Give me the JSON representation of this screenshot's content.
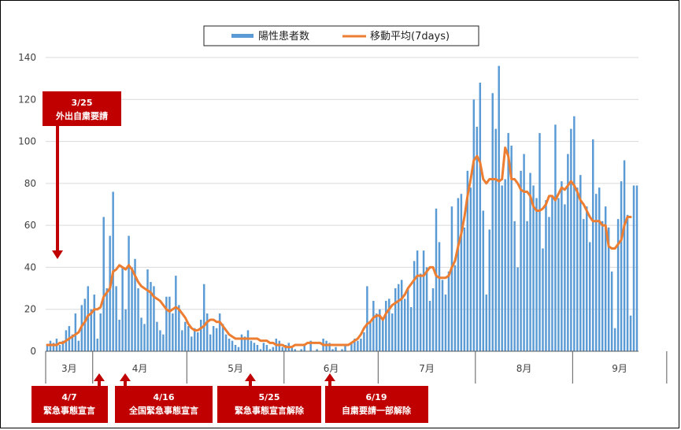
{
  "colors": {
    "bar": "#5b9bd5",
    "line": "#ed7d31",
    "annotation": "#c00000",
    "grid": "#d9d9d9"
  },
  "legend": {
    "bar_label": "陽性患者数",
    "line_label": "移動平均(7days)",
    "position": "top-center"
  },
  "chart_data": {
    "type": "bar",
    "title": "",
    "xlabel": "",
    "ylabel": "",
    "ylim": [
      0,
      140
    ],
    "y_ticks": [
      "0",
      "20",
      "40",
      "60",
      "80",
      "100",
      "120",
      "140"
    ],
    "grid": true,
    "months": [
      {
        "label": "3月",
        "days": 15
      },
      {
        "label": "4月",
        "days": 30
      },
      {
        "label": "5月",
        "days": 31
      },
      {
        "label": "6月",
        "days": 30
      },
      {
        "label": "7月",
        "days": 31
      },
      {
        "label": "8月",
        "days": 31
      },
      {
        "label": "9月",
        "days": 30
      }
    ],
    "x_start": "3/17",
    "series": [
      {
        "name": "陽性患者数",
        "type": "bar",
        "values": [
          3,
          5,
          4,
          6,
          3,
          5,
          10,
          12,
          8,
          18,
          5,
          22,
          25,
          31,
          20,
          27,
          6,
          18,
          64,
          30,
          55,
          76,
          31,
          15,
          40,
          20,
          55,
          40,
          44,
          30,
          16,
          13,
          39,
          33,
          31,
          14,
          10,
          8,
          26,
          26,
          18,
          36,
          22,
          10,
          14,
          12,
          7,
          11,
          9,
          15,
          32,
          18,
          8,
          12,
          11,
          18,
          13,
          8,
          6,
          5,
          3,
          2,
          8,
          7,
          10,
          5,
          4,
          3,
          1,
          4,
          3,
          1,
          2,
          6,
          5,
          2,
          3,
          4,
          2,
          1,
          0,
          1,
          3,
          0,
          5,
          0,
          1,
          0,
          6,
          5,
          4,
          1,
          2,
          0,
          1,
          3,
          0,
          4,
          6,
          5,
          6,
          9,
          31,
          14,
          24,
          18,
          20,
          15,
          24,
          25,
          18,
          30,
          32,
          34,
          25,
          30,
          21,
          43,
          48,
          37,
          48,
          40,
          24,
          30,
          68,
          52,
          34,
          27,
          38,
          69,
          41,
          73,
          75,
          59,
          86,
          78,
          120,
          107,
          128,
          67,
          27,
          58,
          123,
          106,
          136,
          79,
          82,
          104,
          98,
          62,
          40,
          86,
          94,
          62,
          85,
          79,
          73,
          104,
          49,
          72,
          64,
          74,
          108,
          73,
          81,
          70,
          94,
          106,
          112,
          78,
          84,
          63,
          69,
          52,
          101,
          75,
          78,
          62,
          69,
          59,
          38,
          11,
          63,
          81,
          91,
          65,
          17,
          79,
          79
        ]
      },
      {
        "name": "移動平均(7days)",
        "type": "line",
        "values": [
          3,
          3,
          3,
          3,
          4,
          4,
          5,
          6,
          7,
          8,
          9,
          12,
          14,
          17,
          18,
          20,
          20,
          21,
          26,
          28,
          30,
          38,
          39,
          41,
          40,
          39,
          41,
          39,
          36,
          33,
          31,
          30,
          29,
          28,
          26,
          25,
          24,
          22,
          20,
          19,
          20,
          21,
          20,
          18,
          16,
          13,
          11,
          10,
          10,
          11,
          12,
          14,
          15,
          15,
          14,
          14,
          12,
          10,
          8,
          7,
          6,
          6,
          6,
          6,
          6,
          6,
          6,
          6,
          5,
          5,
          5,
          4,
          4,
          3,
          3,
          3,
          2,
          2,
          2,
          3,
          3,
          3,
          3,
          4,
          4,
          4,
          4,
          4,
          3,
          3,
          3,
          3,
          3,
          3,
          3,
          3,
          3,
          4,
          5,
          6,
          8,
          11,
          13,
          14,
          16,
          17,
          17,
          15,
          18,
          20,
          22,
          23,
          24,
          25,
          27,
          30,
          32,
          34,
          36,
          36,
          36,
          38,
          40,
          40,
          36,
          35,
          35,
          35,
          36,
          40,
          43,
          50,
          56,
          64,
          74,
          82,
          91,
          93,
          90,
          82,
          80,
          82,
          82,
          82,
          81,
          82,
          97,
          93,
          82,
          82,
          80,
          77,
          76,
          76,
          74,
          69,
          67,
          67,
          68,
          70,
          74,
          74,
          72,
          75,
          78,
          77,
          79,
          81,
          79,
          76,
          72,
          70,
          67,
          64,
          62,
          62,
          62,
          60,
          60,
          50,
          49,
          49,
          51,
          53,
          60,
          64,
          64
        ]
      }
    ]
  },
  "annotations": {
    "a325": {
      "line1": "3/25",
      "line2": "外出自粛要請"
    },
    "a47": {
      "line1": "4/7",
      "line2": "緊急事態宣言"
    },
    "a416": {
      "line1": "4/16",
      "line2": "全国緊急事態宣言"
    },
    "a525": {
      "line1": "5/25",
      "line2": "緊急事態宣言解除"
    },
    "a619": {
      "line1": "6/19",
      "line2": "自粛要請一部解除"
    }
  }
}
